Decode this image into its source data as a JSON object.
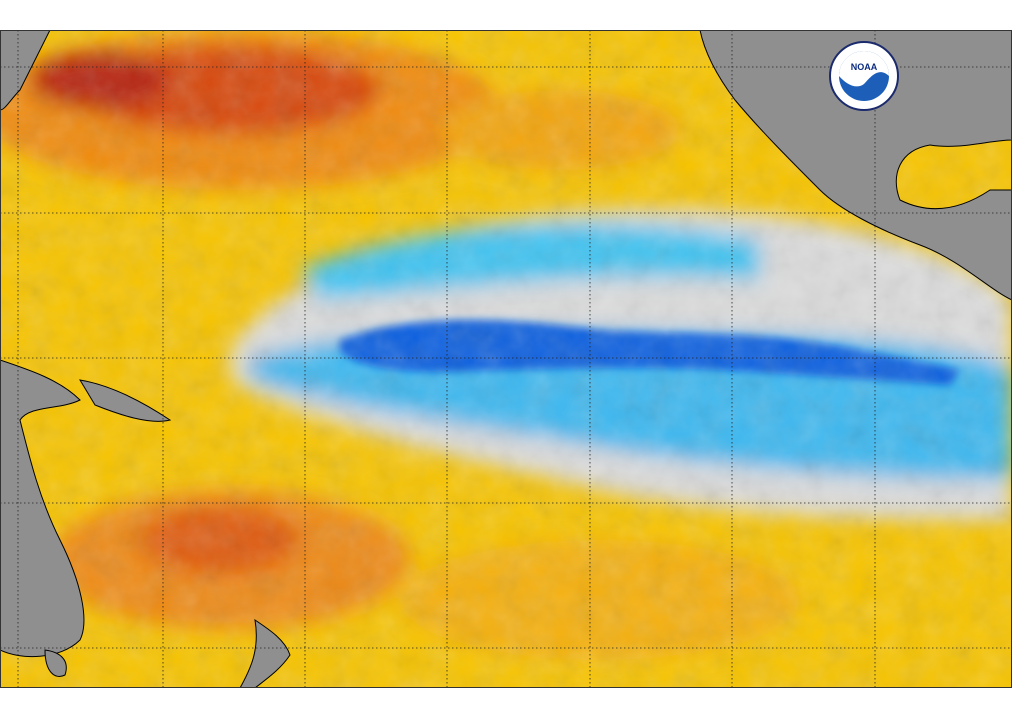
{
  "logo": {
    "label": "NOAA"
  }
}
